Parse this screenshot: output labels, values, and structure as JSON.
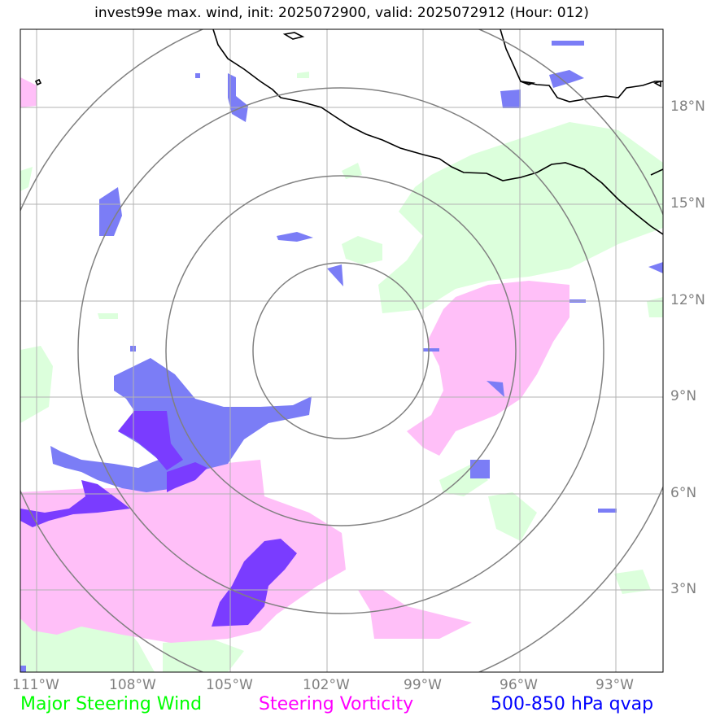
{
  "title": "invest99e max. wind, init: 2025072900, valid: 2025072912 (Hour: 012)",
  "legend": {
    "wind": "Major Steering Wind",
    "vorticity": "Steering Vorticity",
    "qvap": "500-850 hPa qvap"
  },
  "colors": {
    "wind": "#00ff00",
    "vorticity": "#ff00ff",
    "qvap": "#0000ff",
    "wind_fill": "#dcffdc",
    "vorticity_fill": "#ffbff8",
    "qvap_fill": "#7b7df6",
    "overlap_fill": "#7a3cff",
    "grid": "#b3b3b3",
    "rings": "#808080"
  },
  "lon_ticks": [
    "111°W",
    "108°W",
    "105°W",
    "102°W",
    "99°W",
    "96°W",
    "93°W"
  ],
  "lat_ticks": [
    "18°N",
    "15°N",
    "12°N",
    "9°N",
    "6°N",
    "3°N"
  ],
  "center": {
    "lon": -101.6,
    "lat": 10.5
  },
  "extent": {
    "lon_min": -111.5,
    "lon_max": -91.5,
    "lat_min": 0.5,
    "lat_max": 20.5
  }
}
